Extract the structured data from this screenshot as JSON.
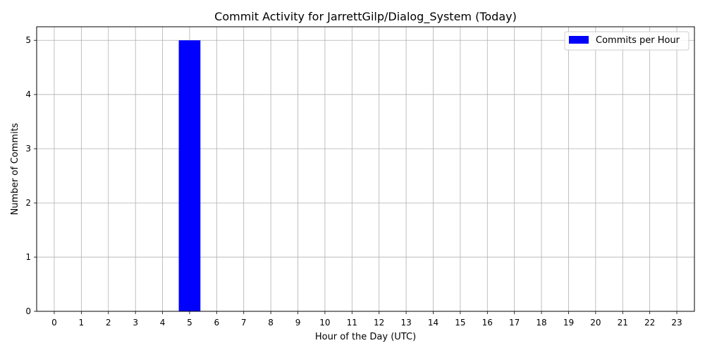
{
  "chart_data": {
    "type": "bar",
    "title": "Commit Activity for JarrettGilp/Dialog_System (Today)",
    "xlabel": "Hour of the Day (UTC)",
    "ylabel": "Number of Commits",
    "categories": [
      "0",
      "1",
      "2",
      "3",
      "4",
      "5",
      "6",
      "7",
      "8",
      "9",
      "10",
      "11",
      "12",
      "13",
      "14",
      "15",
      "16",
      "17",
      "18",
      "19",
      "20",
      "21",
      "22",
      "23"
    ],
    "series": [
      {
        "name": "Commits per Hour",
        "values": [
          0,
          0,
          0,
          0,
          0,
          5,
          0,
          0,
          0,
          0,
          0,
          0,
          0,
          0,
          0,
          0,
          0,
          0,
          0,
          0,
          0,
          0,
          0,
          0
        ],
        "color": "#0000ff"
      }
    ],
    "ylim": [
      0,
      5.25
    ],
    "yticks": [
      "0",
      "1",
      "2",
      "3",
      "4",
      "5"
    ],
    "grid": true,
    "legend_position": "top-right"
  }
}
